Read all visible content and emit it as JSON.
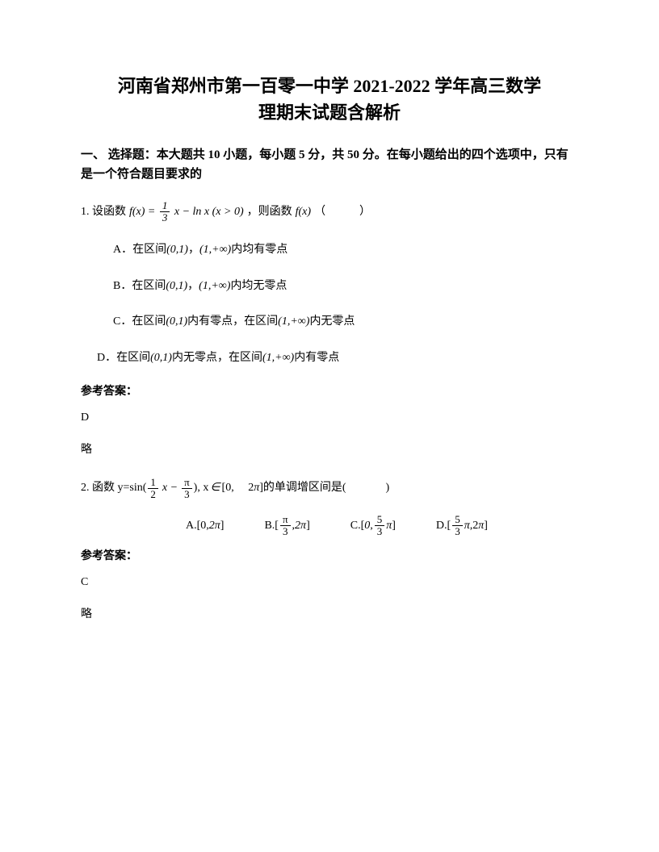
{
  "title": {
    "line1": "河南省郑州市第一百零一中学 2021-2022 学年高三数学",
    "line2": "理期末试题含解析"
  },
  "section_header": "一、 选择题：本大题共 10 小题，每小题 5 分，共 50 分。在每小题给出的四个选项中，只有是一个符合题目要求的",
  "q1": {
    "prefix": "1. 设函数",
    "formula_fx_eq": "f(x) =",
    "frac_num": "1",
    "frac_den": "3",
    "formula_suffix": "x − ln x (x > 0)",
    "mid": "，则函数",
    "fx": "f(x)",
    "tail": " （　　　）",
    "optA": {
      "label": "A．在区间",
      "int1": "(0,1)",
      "comma": "，",
      "int2": "(1,+∞)",
      "suffix": "内均有零点"
    },
    "optB": {
      "label": "B．在区间",
      "int1": "(0,1)",
      "comma": "，",
      "int2": "(1,+∞)",
      "suffix": "内均无零点"
    },
    "optC": {
      "label": "C．在区间",
      "int1": "(0,1)",
      "mid": "内有零点，在区间",
      "int2": "(1,+∞)",
      "suffix": "内无零点"
    },
    "optD": {
      "label": "D．在区间",
      "int1": "(0,1)",
      "mid": "内无零点，在区间",
      "int2": "(1,+∞)",
      "suffix": "内有零点"
    },
    "answer_label": "参考答案：",
    "answer": "D",
    "note": "略"
  },
  "q2": {
    "prefix": "2. 函数 y=sin(",
    "frac1_num": "1",
    "frac1_den": "2",
    "x_minus": "x −",
    "frac2_num": "π",
    "frac2_den": "3",
    "mid1": "), x",
    "in_symbol": "∈",
    "mid2": "[0,　 2",
    "pi": "π",
    "mid3": "]的单调增区间是( 　　　 )",
    "optA": {
      "label": "A.[0, ",
      "val": "2π",
      "suffix": "]"
    },
    "optB": {
      "label": "B.[",
      "frac_num": "π",
      "frac_den": "3",
      "comma": ", ",
      "val": "2π",
      "suffix": "]"
    },
    "optC": {
      "label": "C.[",
      "zero": "0",
      "comma": ", ",
      "frac_num": "5",
      "frac_den": "3",
      "pi": "π",
      "suffix": "]"
    },
    "optD": {
      "label": "D.[",
      "frac_num": "5",
      "frac_den": "3",
      "pi": "π",
      "comma": ",2",
      "val": "π",
      "suffix": "]"
    },
    "answer_label": "参考答案：",
    "answer": "C",
    "note": "略"
  }
}
